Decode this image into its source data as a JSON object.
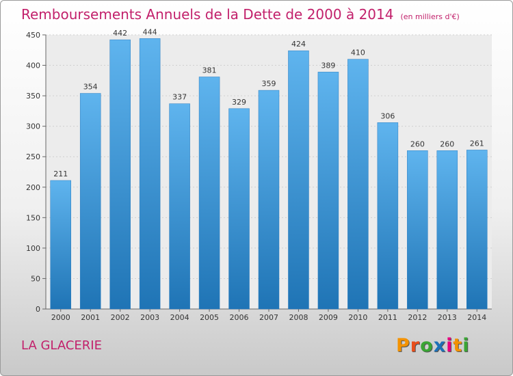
{
  "title": "Remboursements Annuels de la Dette de 2000 à 2014",
  "unit": "(en milliers d'€)",
  "commune": "LA GLACERIE",
  "logo": {
    "text": "Proxiti",
    "colors": [
      "#f39200",
      "#e94e1b",
      "#3aa535",
      "#1d71b8",
      "#e6007e",
      "#f39200",
      "#3aa535"
    ]
  },
  "colors": {
    "accent": "#c2206b",
    "bar_top": "#5fb4ee",
    "bar_bottom": "#1f74b5"
  },
  "chart_data": {
    "type": "bar",
    "categories": [
      "2000",
      "2001",
      "2002",
      "2003",
      "2004",
      "2005",
      "2006",
      "2007",
      "2008",
      "2009",
      "2010",
      "2011",
      "2012",
      "2013",
      "2014"
    ],
    "values": [
      211,
      354,
      442,
      444,
      337,
      381,
      329,
      359,
      424,
      389,
      410,
      306,
      260,
      260,
      261
    ],
    "title": "Remboursements Annuels de la Dette de 2000 à 2014",
    "ylim": [
      0,
      450
    ],
    "yticks": [
      0,
      50,
      100,
      150,
      200,
      250,
      300,
      350,
      400,
      450
    ],
    "grid": true
  }
}
